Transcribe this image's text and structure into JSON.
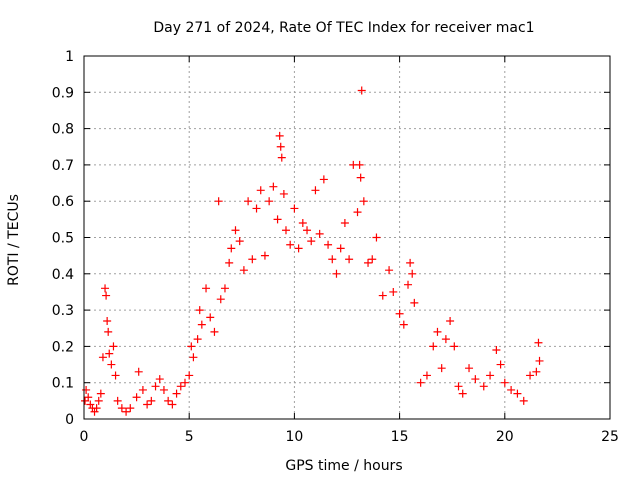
{
  "chart_data": {
    "type": "scatter",
    "title": "Day 271 of 2024, Rate Of TEC Index for receiver mac1",
    "xlabel": "GPS time / hours",
    "ylabel": "ROTI / TECUs",
    "xlim": [
      0,
      25
    ],
    "ylim": [
      0,
      1
    ],
    "xticks": [
      0,
      5,
      10,
      15,
      20,
      25
    ],
    "xtick_labels": [
      "0",
      "5",
      "10",
      "15",
      "20",
      "25"
    ],
    "yticks": [
      0,
      0.1,
      0.2,
      0.3,
      0.4,
      0.5,
      0.6,
      0.7,
      0.8,
      0.9,
      1
    ],
    "ytick_labels": [
      "0",
      "0.1",
      "0.2",
      "0.3",
      "0.4",
      "0.5",
      "0.6",
      "0.7",
      "0.8",
      "0.9",
      "1"
    ],
    "grid": true,
    "marker": "+",
    "series": [
      {
        "name": "ROTI",
        "color": "#ff0000",
        "points": [
          [
            0.05,
            0.05
          ],
          [
            0.1,
            0.08
          ],
          [
            0.2,
            0.06
          ],
          [
            0.3,
            0.04
          ],
          [
            0.4,
            0.03
          ],
          [
            0.5,
            0.02
          ],
          [
            0.6,
            0.03
          ],
          [
            0.7,
            0.05
          ],
          [
            0.8,
            0.07
          ],
          [
            0.9,
            0.17
          ],
          [
            1.0,
            0.36
          ],
          [
            1.05,
            0.34
          ],
          [
            1.1,
            0.27
          ],
          [
            1.15,
            0.24
          ],
          [
            1.2,
            0.18
          ],
          [
            1.3,
            0.15
          ],
          [
            1.4,
            0.2
          ],
          [
            1.5,
            0.12
          ],
          [
            1.6,
            0.05
          ],
          [
            1.8,
            0.03
          ],
          [
            2.0,
            0.02
          ],
          [
            2.2,
            0.03
          ],
          [
            2.5,
            0.06
          ],
          [
            2.6,
            0.13
          ],
          [
            2.8,
            0.08
          ],
          [
            3.0,
            0.04
          ],
          [
            3.2,
            0.05
          ],
          [
            3.4,
            0.09
          ],
          [
            3.6,
            0.11
          ],
          [
            3.8,
            0.08
          ],
          [
            4.0,
            0.05
          ],
          [
            4.2,
            0.04
          ],
          [
            4.4,
            0.07
          ],
          [
            4.6,
            0.09
          ],
          [
            4.8,
            0.1
          ],
          [
            5.0,
            0.12
          ],
          [
            5.1,
            0.2
          ],
          [
            5.2,
            0.17
          ],
          [
            5.4,
            0.22
          ],
          [
            5.5,
            0.3
          ],
          [
            5.6,
            0.26
          ],
          [
            5.8,
            0.36
          ],
          [
            6.0,
            0.28
          ],
          [
            6.2,
            0.24
          ],
          [
            6.4,
            0.6
          ],
          [
            6.5,
            0.33
          ],
          [
            6.7,
            0.36
          ],
          [
            6.9,
            0.43
          ],
          [
            7.0,
            0.47
          ],
          [
            7.2,
            0.52
          ],
          [
            7.4,
            0.49
          ],
          [
            7.6,
            0.41
          ],
          [
            7.8,
            0.6
          ],
          [
            8.0,
            0.44
          ],
          [
            8.2,
            0.58
          ],
          [
            8.4,
            0.63
          ],
          [
            8.6,
            0.45
          ],
          [
            8.8,
            0.6
          ],
          [
            9.0,
            0.64
          ],
          [
            9.2,
            0.55
          ],
          [
            9.3,
            0.78
          ],
          [
            9.35,
            0.75
          ],
          [
            9.4,
            0.72
          ],
          [
            9.5,
            0.62
          ],
          [
            9.6,
            0.52
          ],
          [
            9.8,
            0.48
          ],
          [
            10.0,
            0.58
          ],
          [
            10.2,
            0.47
          ],
          [
            10.4,
            0.54
          ],
          [
            10.6,
            0.52
          ],
          [
            10.8,
            0.49
          ],
          [
            11.0,
            0.63
          ],
          [
            11.2,
            0.51
          ],
          [
            11.4,
            0.66
          ],
          [
            11.6,
            0.48
          ],
          [
            11.8,
            0.44
          ],
          [
            12.0,
            0.4
          ],
          [
            12.2,
            0.47
          ],
          [
            12.4,
            0.54
          ],
          [
            12.6,
            0.44
          ],
          [
            12.8,
            0.7
          ],
          [
            13.0,
            0.57
          ],
          [
            13.1,
            0.7
          ],
          [
            13.15,
            0.665
          ],
          [
            13.2,
            0.905
          ],
          [
            13.3,
            0.6
          ],
          [
            13.5,
            0.43
          ],
          [
            13.7,
            0.44
          ],
          [
            13.9,
            0.5
          ],
          [
            14.2,
            0.34
          ],
          [
            14.5,
            0.41
          ],
          [
            14.7,
            0.35
          ],
          [
            15.0,
            0.29
          ],
          [
            15.2,
            0.26
          ],
          [
            15.4,
            0.37
          ],
          [
            15.5,
            0.43
          ],
          [
            15.6,
            0.4
          ],
          [
            15.7,
            0.32
          ],
          [
            16.0,
            0.1
          ],
          [
            16.3,
            0.12
          ],
          [
            16.6,
            0.2
          ],
          [
            16.8,
            0.24
          ],
          [
            17.0,
            0.14
          ],
          [
            17.2,
            0.22
          ],
          [
            17.4,
            0.27
          ],
          [
            17.6,
            0.2
          ],
          [
            17.8,
            0.09
          ],
          [
            18.0,
            0.07
          ],
          [
            18.3,
            0.14
          ],
          [
            18.6,
            0.11
          ],
          [
            19.0,
            0.09
          ],
          [
            19.3,
            0.12
          ],
          [
            19.6,
            0.19
          ],
          [
            19.8,
            0.15
          ],
          [
            20.0,
            0.1
          ],
          [
            20.3,
            0.08
          ],
          [
            20.6,
            0.07
          ],
          [
            20.9,
            0.05
          ],
          [
            21.2,
            0.12
          ],
          [
            21.5,
            0.13
          ],
          [
            21.6,
            0.21
          ],
          [
            21.65,
            0.16
          ]
        ]
      }
    ]
  }
}
